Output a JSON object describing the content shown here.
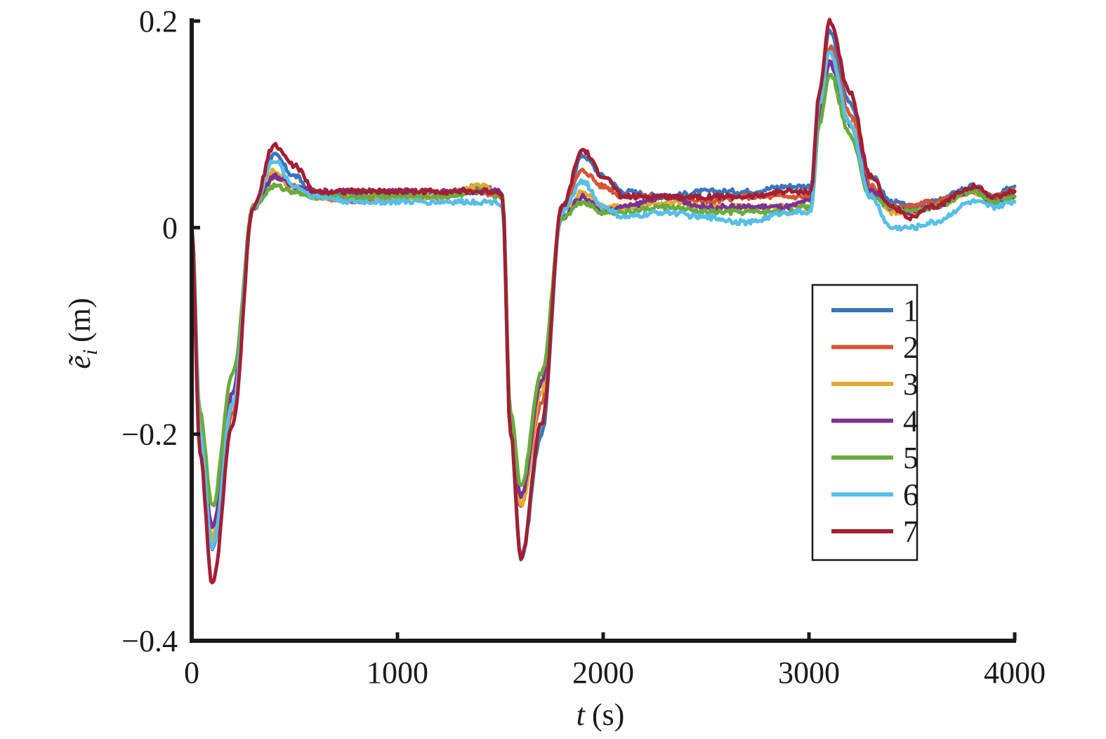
{
  "chart_data": {
    "type": "line",
    "title": "",
    "xlabel": {
      "var": "t",
      "unit": "(s)"
    },
    "ylabel": {
      "var": "ẽ",
      "sub": "i",
      "unit": "(m)"
    },
    "xlim": [
      0,
      4000
    ],
    "ylim": [
      -0.4,
      0.2
    ],
    "x_ticks": [
      0,
      1000,
      2000,
      3000,
      4000
    ],
    "x_tick_labels": [
      "0",
      "1000",
      "2000",
      "3000",
      "4000"
    ],
    "y_ticks": [
      -0.4,
      -0.2,
      0,
      0.2
    ],
    "y_tick_labels": [
      "−0.4",
      "−0.2",
      "0",
      "0.2"
    ],
    "grid": false,
    "legend_position": "right",
    "series": [
      {
        "name": "1",
        "color": "#3a75b8",
        "points": [
          [
            0,
            0
          ],
          [
            40,
            -0.2
          ],
          [
            100,
            -0.31
          ],
          [
            200,
            -0.17
          ],
          [
            300,
            0.02
          ],
          [
            400,
            0.07
          ],
          [
            500,
            0.05
          ],
          [
            600,
            0.03
          ],
          [
            800,
            0.03
          ],
          [
            1000,
            0.03
          ],
          [
            1200,
            0.03
          ],
          [
            1400,
            0.04
          ],
          [
            1490,
            0.035
          ],
          [
            1510,
            0.03
          ],
          [
            1550,
            -0.2
          ],
          [
            1600,
            -0.32
          ],
          [
            1700,
            -0.2
          ],
          [
            1800,
            0.02
          ],
          [
            1900,
            0.07
          ],
          [
            2000,
            0.05
          ],
          [
            2100,
            0.035
          ],
          [
            2300,
            0.03
          ],
          [
            2500,
            0.035
          ],
          [
            2700,
            0.035
          ],
          [
            2900,
            0.04
          ],
          [
            2990,
            0.04
          ],
          [
            3010,
            0.04
          ],
          [
            3050,
            0.13
          ],
          [
            3100,
            0.19
          ],
          [
            3200,
            0.12
          ],
          [
            3300,
            0.05
          ],
          [
            3400,
            0.025
          ],
          [
            3500,
            0.02
          ],
          [
            3600,
            0.025
          ],
          [
            3800,
            0.04
          ],
          [
            3900,
            0.03
          ],
          [
            4000,
            0.04
          ]
        ]
      },
      {
        "name": "2",
        "color": "#d55636",
        "points": [
          [
            0,
            0
          ],
          [
            40,
            -0.2
          ],
          [
            100,
            -0.3
          ],
          [
            200,
            -0.18
          ],
          [
            300,
            0.02
          ],
          [
            400,
            0.05
          ],
          [
            500,
            0.04
          ],
          [
            600,
            0.03
          ],
          [
            800,
            0.025
          ],
          [
            1000,
            0.03
          ],
          [
            1200,
            0.03
          ],
          [
            1400,
            0.035
          ],
          [
            1490,
            0.03
          ],
          [
            1510,
            0.03
          ],
          [
            1550,
            -0.2
          ],
          [
            1600,
            -0.27
          ],
          [
            1700,
            -0.17
          ],
          [
            1800,
            0.02
          ],
          [
            1900,
            0.055
          ],
          [
            2000,
            0.04
          ],
          [
            2100,
            0.03
          ],
          [
            2300,
            0.03
          ],
          [
            2500,
            0.025
          ],
          [
            2700,
            0.03
          ],
          [
            2900,
            0.03
          ],
          [
            2990,
            0.03
          ],
          [
            3010,
            0.03
          ],
          [
            3050,
            0.12
          ],
          [
            3100,
            0.175
          ],
          [
            3200,
            0.11
          ],
          [
            3300,
            0.04
          ],
          [
            3400,
            0.02
          ],
          [
            3500,
            0.02
          ],
          [
            3600,
            0.025
          ],
          [
            3800,
            0.035
          ],
          [
            3900,
            0.03
          ],
          [
            4000,
            0.035
          ]
        ]
      },
      {
        "name": "3",
        "color": "#e3a82f",
        "points": [
          [
            0,
            0
          ],
          [
            40,
            -0.2
          ],
          [
            100,
            -0.3
          ],
          [
            200,
            -0.17
          ],
          [
            300,
            0.02
          ],
          [
            400,
            0.055
          ],
          [
            500,
            0.035
          ],
          [
            600,
            0.03
          ],
          [
            800,
            0.03
          ],
          [
            1000,
            0.03
          ],
          [
            1200,
            0.03
          ],
          [
            1400,
            0.04
          ],
          [
            1490,
            0.035
          ],
          [
            1510,
            0.03
          ],
          [
            1550,
            -0.2
          ],
          [
            1600,
            -0.27
          ],
          [
            1700,
            -0.16
          ],
          [
            1800,
            0.01
          ],
          [
            1900,
            0.035
          ],
          [
            2000,
            0.02
          ],
          [
            2100,
            0.02
          ],
          [
            2300,
            0.025
          ],
          [
            2500,
            0.02
          ],
          [
            2700,
            0.02
          ],
          [
            2900,
            0.02
          ],
          [
            2990,
            0.02
          ],
          [
            3010,
            0.02
          ],
          [
            3050,
            0.11
          ],
          [
            3100,
            0.16
          ],
          [
            3200,
            0.1
          ],
          [
            3300,
            0.035
          ],
          [
            3400,
            0.015
          ],
          [
            3500,
            0.015
          ],
          [
            3600,
            0.02
          ],
          [
            3800,
            0.035
          ],
          [
            3900,
            0.025
          ],
          [
            4000,
            0.03
          ]
        ]
      },
      {
        "name": "4",
        "color": "#7b3294",
        "points": [
          [
            0,
            0
          ],
          [
            40,
            -0.2
          ],
          [
            100,
            -0.29
          ],
          [
            200,
            -0.16
          ],
          [
            300,
            0.02
          ],
          [
            400,
            0.05
          ],
          [
            500,
            0.04
          ],
          [
            600,
            0.035
          ],
          [
            800,
            0.035
          ],
          [
            1000,
            0.035
          ],
          [
            1200,
            0.035
          ],
          [
            1400,
            0.035
          ],
          [
            1490,
            0.035
          ],
          [
            1510,
            0.03
          ],
          [
            1550,
            -0.2
          ],
          [
            1600,
            -0.26
          ],
          [
            1700,
            -0.15
          ],
          [
            1800,
            0.01
          ],
          [
            1900,
            0.03
          ],
          [
            2000,
            0.015
          ],
          [
            2100,
            0.02
          ],
          [
            2300,
            0.03
          ],
          [
            2500,
            0.02
          ],
          [
            2700,
            0.02
          ],
          [
            2900,
            0.02
          ],
          [
            2990,
            0.025
          ],
          [
            3010,
            0.025
          ],
          [
            3050,
            0.11
          ],
          [
            3100,
            0.16
          ],
          [
            3200,
            0.1
          ],
          [
            3300,
            0.035
          ],
          [
            3400,
            0.02
          ],
          [
            3500,
            0.015
          ],
          [
            3600,
            0.02
          ],
          [
            3800,
            0.035
          ],
          [
            3900,
            0.025
          ],
          [
            4000,
            0.03
          ]
        ]
      },
      {
        "name": "5",
        "color": "#6aab3b",
        "points": [
          [
            0,
            0
          ],
          [
            40,
            -0.18
          ],
          [
            100,
            -0.27
          ],
          [
            200,
            -0.14
          ],
          [
            300,
            0.02
          ],
          [
            400,
            0.04
          ],
          [
            500,
            0.035
          ],
          [
            600,
            0.03
          ],
          [
            800,
            0.03
          ],
          [
            1000,
            0.03
          ],
          [
            1200,
            0.03
          ],
          [
            1400,
            0.035
          ],
          [
            1490,
            0.03
          ],
          [
            1510,
            0.03
          ],
          [
            1550,
            -0.18
          ],
          [
            1600,
            -0.25
          ],
          [
            1700,
            -0.14
          ],
          [
            1800,
            0.01
          ],
          [
            1900,
            0.025
          ],
          [
            2000,
            0.015
          ],
          [
            2100,
            0.015
          ],
          [
            2300,
            0.02
          ],
          [
            2500,
            0.015
          ],
          [
            2700,
            0.015
          ],
          [
            2900,
            0.015
          ],
          [
            2990,
            0.02
          ],
          [
            3010,
            0.02
          ],
          [
            3050,
            0.1
          ],
          [
            3100,
            0.15
          ],
          [
            3200,
            0.09
          ],
          [
            3300,
            0.03
          ],
          [
            3400,
            0.02
          ],
          [
            3500,
            0.015
          ],
          [
            3600,
            0.02
          ],
          [
            3800,
            0.035
          ],
          [
            3900,
            0.025
          ],
          [
            4000,
            0.03
          ]
        ]
      },
      {
        "name": "6",
        "color": "#56bfe6",
        "points": [
          [
            0,
            0
          ],
          [
            40,
            -0.2
          ],
          [
            100,
            -0.31
          ],
          [
            200,
            -0.17
          ],
          [
            300,
            0.02
          ],
          [
            400,
            0.065
          ],
          [
            500,
            0.04
          ],
          [
            600,
            0.03
          ],
          [
            800,
            0.025
          ],
          [
            1000,
            0.025
          ],
          [
            1200,
            0.025
          ],
          [
            1400,
            0.025
          ],
          [
            1490,
            0.025
          ],
          [
            1510,
            0.02
          ],
          [
            1550,
            -0.2
          ],
          [
            1600,
            -0.32
          ],
          [
            1700,
            -0.19
          ],
          [
            1800,
            0.015
          ],
          [
            1900,
            0.045
          ],
          [
            2000,
            0.02
          ],
          [
            2100,
            0.01
          ],
          [
            2300,
            0.015
          ],
          [
            2500,
            0.01
          ],
          [
            2700,
            0.005
          ],
          [
            2900,
            0.015
          ],
          [
            2990,
            0.015
          ],
          [
            3010,
            0.015
          ],
          [
            3050,
            0.12
          ],
          [
            3100,
            0.17
          ],
          [
            3200,
            0.1
          ],
          [
            3300,
            0.03
          ],
          [
            3400,
            0.0
          ],
          [
            3500,
            0.0
          ],
          [
            3600,
            0.005
          ],
          [
            3800,
            0.025
          ],
          [
            3900,
            0.02
          ],
          [
            4000,
            0.025
          ]
        ]
      },
      {
        "name": "7",
        "color": "#a31f34",
        "points": [
          [
            0,
            0
          ],
          [
            40,
            -0.22
          ],
          [
            100,
            -0.345
          ],
          [
            200,
            -0.19
          ],
          [
            300,
            0.02
          ],
          [
            400,
            0.08
          ],
          [
            500,
            0.06
          ],
          [
            600,
            0.035
          ],
          [
            800,
            0.035
          ],
          [
            1000,
            0.035
          ],
          [
            1200,
            0.035
          ],
          [
            1400,
            0.035
          ],
          [
            1490,
            0.035
          ],
          [
            1510,
            0.03
          ],
          [
            1550,
            -0.2
          ],
          [
            1600,
            -0.32
          ],
          [
            1700,
            -0.19
          ],
          [
            1800,
            0.02
          ],
          [
            1900,
            0.075
          ],
          [
            2000,
            0.05
          ],
          [
            2100,
            0.03
          ],
          [
            2300,
            0.03
          ],
          [
            2500,
            0.03
          ],
          [
            2700,
            0.03
          ],
          [
            2900,
            0.035
          ],
          [
            2990,
            0.035
          ],
          [
            3010,
            0.035
          ],
          [
            3050,
            0.13
          ],
          [
            3100,
            0.2
          ],
          [
            3200,
            0.13
          ],
          [
            3300,
            0.05
          ],
          [
            3400,
            0.02
          ],
          [
            3500,
            0.01
          ],
          [
            3600,
            0.02
          ],
          [
            3800,
            0.04
          ],
          [
            3900,
            0.03
          ],
          [
            4000,
            0.035
          ]
        ]
      }
    ]
  }
}
